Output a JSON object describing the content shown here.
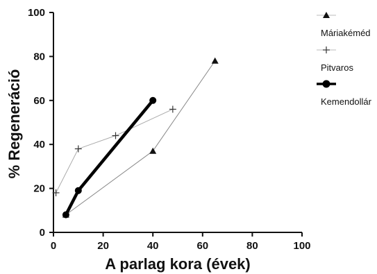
{
  "chart_data": {
    "type": "line",
    "title": "",
    "xlabel": "A parlag kora (évek)",
    "ylabel": "% Regeneráció",
    "xlim": [
      0,
      100
    ],
    "ylim": [
      0,
      100
    ],
    "xticks": [
      "0",
      "20",
      "40",
      "60",
      "80",
      "100"
    ],
    "yticks": [
      "0",
      "20",
      "40",
      "60",
      "80",
      "100"
    ],
    "grid": false,
    "legend_position": "right",
    "series": [
      {
        "name": "Máriakéméd",
        "marker": "triangle",
        "color": "#888888",
        "line_width": "thin",
        "x": [
          5,
          40,
          65
        ],
        "y": [
          8,
          37,
          78
        ]
      },
      {
        "name": "Pitvaros",
        "marker": "plus",
        "color": "#aaaaaa",
        "line_width": "thin",
        "x": [
          1,
          10,
          25,
          48
        ],
        "y": [
          18,
          38,
          44,
          56
        ]
      },
      {
        "name": "Kemendollár",
        "marker": "circle",
        "color": "#000000",
        "line_width": "thick",
        "x": [
          5,
          10,
          40
        ],
        "y": [
          8,
          19,
          60
        ]
      }
    ]
  }
}
